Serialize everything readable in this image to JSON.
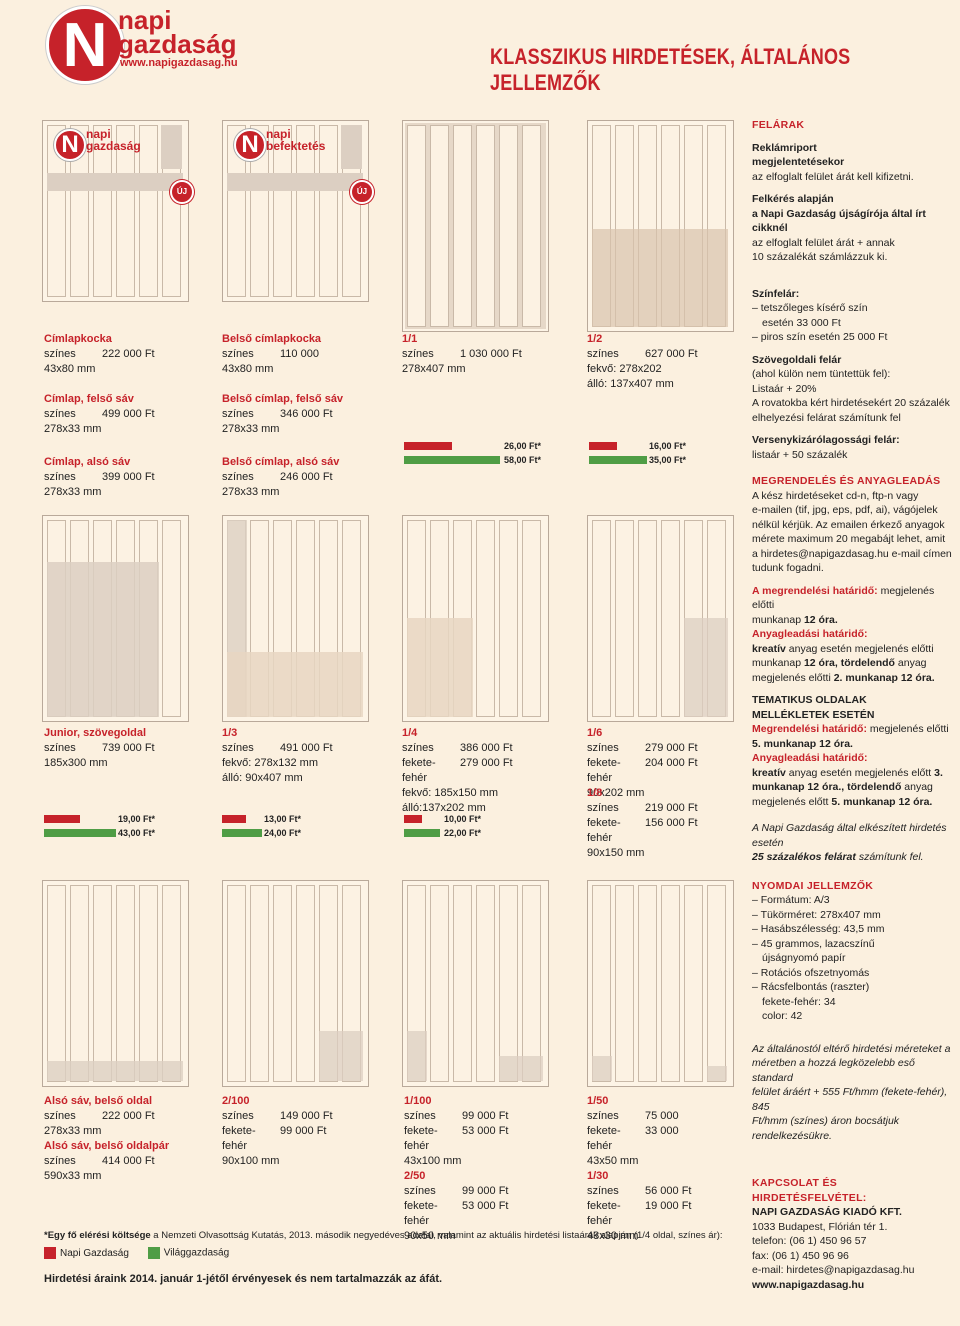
{
  "header": {
    "logo_line1": "napi",
    "logo_line2": "gazdaság",
    "logo_url": "www.napigazdasag.hu",
    "title": "KLASSZIKUS HIRDETÉSEK, ÁLTALÁNOS JELLEMZŐK"
  },
  "mini_logos": {
    "ng1": "napi",
    "ng2": "gazdaság",
    "nb1": "napi",
    "nb2": "befektetés",
    "uj": "ÚJ"
  },
  "colors": {
    "accent": "#c6222a",
    "green": "#4f9d45",
    "bg": "#fbf0df"
  },
  "blocks": {
    "cimlapkocka": {
      "t": "Címlapkocka",
      "k": "színes",
      "v": "222 000 Ft",
      "s": "43x80 mm"
    },
    "cimlap_felso": {
      "t": "Címlap, felső sáv",
      "k": "színes",
      "v": "499 000 Ft",
      "s": "278x33 mm"
    },
    "cimlap_also": {
      "t": "Címlap, alsó sáv",
      "k": "színes",
      "v": "399 000 Ft",
      "s": "278x33 mm"
    },
    "belso_cimlapkocka": {
      "t": "Belső címlapkocka",
      "k": "színes",
      "v": "110 000",
      "s": "43x80 mm"
    },
    "belso_felso": {
      "t": "Belső címlap, felső sáv",
      "k": "színes",
      "v": "346 000 Ft",
      "s": "278x33 mm"
    },
    "belso_also": {
      "t": "Belső címlap, alsó sáv",
      "k": "színes",
      "v": "246 000 Ft",
      "s": "278x33 mm"
    },
    "egy_per_egy": {
      "t": "1/1",
      "k": "színes",
      "v": "1 030 000 Ft",
      "s": "278x407 mm",
      "r": "26,00 Ft*",
      "g": "58,00 Ft*"
    },
    "fel": {
      "t": "1/2",
      "k": "színes",
      "v": "627 000 Ft",
      "s1": "fekvő: 278x202",
      "s2": "álló: 137x407 mm",
      "r": "16,00 Ft*",
      "g": "35,00 Ft*"
    },
    "junior": {
      "t": "Junior, szövegoldal",
      "k": "színes",
      "v": "739 000 Ft",
      "s": "185x300 mm",
      "r": "19,00 Ft*",
      "g": "43,00 Ft*"
    },
    "harmad": {
      "t": "1/3",
      "k": "színes",
      "v": "491 000 Ft",
      "s1": "fekvő: 278x132 mm",
      "s2": "álló: 90x407 mm",
      "r": "13,00 Ft*",
      "g": "24,00 Ft*"
    },
    "negyed": {
      "t": "1/4",
      "k": "színes",
      "v": "386 000 Ft",
      "k2": "fekete-fehér",
      "v2": "279 000 Ft",
      "s1": "fekvő: 185x150 mm",
      "s2": "álló:137x202 mm",
      "r": "10,00 Ft*",
      "g": "22,00 Ft*"
    },
    "hatod": {
      "t": "1/6",
      "k": "színes",
      "v": "279 000 Ft",
      "k2": "fekete-fehér",
      "v2": "204 000 Ft",
      "s": "90x202 mm"
    },
    "nyolcad": {
      "t": "1/8",
      "k": "színes",
      "v": "219 000 Ft",
      "k2": "fekete-fehér",
      "v2": "156 000 Ft",
      "s": "90x150 mm"
    },
    "also_sav": {
      "t": "Alsó sáv, belső oldal",
      "k": "színes",
      "v": "222 000 Ft",
      "s": "278x33 mm"
    },
    "also_sav_par": {
      "t": "Alsó sáv, belső oldalpár",
      "k": "színes",
      "v": "414 000 Ft",
      "s": "590x33 mm"
    },
    "ketszaz": {
      "t": "2/100",
      "k": "színes",
      "v": "149 000 Ft",
      "k2": "fekete-fehér",
      "v2": "99 000 Ft",
      "s": "90x100 mm"
    },
    "egyszaz": {
      "t": "1/100",
      "k": "színes",
      "v": "99 000 Ft",
      "k2": "fekete-fehér",
      "v2": "53 000 Ft",
      "s": "43x100 mm"
    },
    "ketotven": {
      "t": "2/50",
      "k": "színes",
      "v": "99 000 Ft",
      "k2": "fekete-fehér",
      "v2": "53 000 Ft",
      "s": "90x50 mm"
    },
    "egyotven": {
      "t": "1/50",
      "k": "színes",
      "v": "75 000",
      "k2": "fekete-fehér",
      "v2": "33 000",
      "s": "43x50 mm"
    },
    "egyharminc": {
      "t": "1/30",
      "k": "színes",
      "v": "56 000 Ft",
      "k2": "fekete-fehér",
      "v2": "19 000 Ft",
      "s": "43x30 mm"
    }
  },
  "sidebar": {
    "felarak": "FELÁRAK",
    "reklamriport1": "Reklámriport",
    "reklamriport2": "megjelentetésekor",
    "reklamriport3": "az elfoglalt felület árát kell kifizetni.",
    "felkeres1": "Felkérés alapján",
    "felkeres2": "a Napi Gazdaság újságírója által írt",
    "felkeres3": "cikknél",
    "felkeres4": "az elfoglalt felület árát + annak",
    "felkeres5": "10 százalékát számlázzuk ki.",
    "szinfelar": "Színfelár:",
    "szin1": "– tetszőleges kísérő szín",
    "szin2": "esetén 33 000 Ft",
    "szin3": "– piros szín esetén 25 000 Ft",
    "szoveg1": "Szövegoldali felár",
    "szoveg2": "(ahol külön nem tüntettük fel):",
    "szoveg3": "Listaár + 20%",
    "szoveg4": "A rovatokba kért hirdetésekért 20 százalék",
    "szoveg5": "elhelyezési felárat számítunk fel",
    "verseny1": "Versenykizárólagossági felár:",
    "verseny2": "listaár + 50 százalék",
    "megrend_hd": "MEGRENDELÉS ÉS ANYAGLEADÁS",
    "m1": "A kész hirdetéseket cd-n, ftp-n vagy",
    "m2": "e-mailen (tif, jpg, eps, pdf, ai), vágójelek",
    "m3": "nélkül kérjük. Az emailen érkező anyagok",
    "m4": "mérete maximum 20 megabájt lehet, amit",
    "m5": "a hirdetes@napigazdasag.hu e-mail címen",
    "m6": "tudunk fogadni.",
    "h1a": "A megrendelési határidő:",
    "h1b": " megjelenés előtti",
    "h1c": "munkanap ",
    "h1d": "12 óra.",
    "a1": "Anyagleadási határidő:",
    "a2": "kreatív",
    "a3": " anyag esetén megjelenés előtti",
    "a4": "munkanap ",
    "a5": "12 óra, tördelendő",
    "a6": " anyag",
    "a7": "megjelenés előtti ",
    "a8": "2. munkanap 12 óra.",
    "tem1": "TEMATIKUS OLDALAK",
    "tem2": "MELLÉKLETEK ESETÉN",
    "t1": "Megrendelési határidő:",
    "t2": " megjelenés előtti",
    "t3": "5. munkanap 12 óra.",
    "t4": "Anyagleadási határidő:",
    "t5": "kreatív",
    "t6": " anyag esetén megjelenés előtt ",
    "t7": "3.",
    "t8": "munkanap 12 óra., tördelendő",
    "t9": " anyag",
    "t10": "megjelenés előtt ",
    "t11": "5. munkanap 12 óra.",
    "sajat1": "A Napi Gazdaság által elkészített hirdetés esetén",
    "sajat2": "25 százalékos felárat",
    "sajat3": " számítunk fel.",
    "nyomdai_hd": "NYOMDAI JELLEMZŐK",
    "n1": "– Formátum: A/3",
    "n2": "– Tükörméret: 278x407 mm",
    "n3": "– Hasábszélesség: 43,5 mm",
    "n4": "– 45 grammos, lazacszínű",
    "n5": "újságnyomó papír",
    "n6": "– Rotációs ofszetnyomás",
    "n7": "– Rácsfelbontás (raszter)",
    "n8": "fekete-fehér: 34",
    "n9": "color: 42",
    "elt1": "Az általánostól eltérő hirdetési méreteket a",
    "elt2": "méretben a hozzá legközelebb eső standard",
    "elt3": "felület áráért + 555 Ft/hmm (fekete-fehér), 845",
    "elt4": "Ft/hmm (színes) áron bocsátjuk rendelkezésükre.",
    "kap_hd": "KAPCSOLAT ÉS HIRDETÉSFELVÉTEL:",
    "k1": "NAPI GAZDASÁG KIADÓ KFT.",
    "k2": "1033 Budapest, Flórián tér 1.",
    "k3": "telefon:   (06 1) 450 96 57",
    "k4": "fax:   (06 1) 450 96 96",
    "k5": "e-mail: hirdetes@napigazdasag.hu",
    "k6": "www.napigazdasag.hu"
  },
  "footer": {
    "note_a": "*Egy fő elérési költsége",
    "note_b": " a Nemzeti Olvasottság Kutatás, 2013. második negyedéves adatai, valamint az aktuális hirdetési listaárak alapján (1/4 oldal, színes ár):",
    "legend1": "Napi Gazdaság",
    "legend2": "Világgazdaság",
    "validity": "Hirdetési áraink 2014. január 1-jétől érvényesek és nem tartalmazzák az áfát."
  }
}
